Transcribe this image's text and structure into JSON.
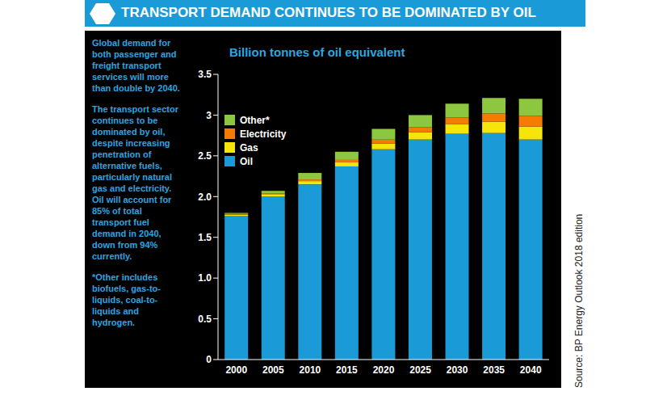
{
  "chart_data": {
    "type": "bar",
    "title": "TRANSPORT DEMAND CONTINUES TO BE DOMINATED BY OIL",
    "ylabel": "Billion tonnes of oil equivalent",
    "annotations": [
      "Global demand for both passenger and freight transport services will more than double by 2040.",
      "The transport sector continues to be dominated by oil, despite increasing penetration of alternative fuels, particularly natural gas and electricity. Oil will account for 85% of total transport fuel demand in 2040, down from 94% currently.",
      "*Other includes biofuels, gas-to-liquids, coal-to-liquids and hydrogen."
    ],
    "source": "Source: BP Energy Outlook 2018 edition",
    "categories": [
      "2000",
      "2005",
      "2010",
      "2015",
      "2020",
      "2025",
      "2030",
      "2035",
      "2040"
    ],
    "series": [
      {
        "name": "Oil",
        "color": "#1a9ad6",
        "values": [
          1.76,
          2.0,
          2.15,
          2.37,
          2.58,
          2.7,
          2.77,
          2.78,
          2.7
        ]
      },
      {
        "name": "Gas",
        "color": "#f5e50a",
        "values": [
          0.02,
          0.03,
          0.04,
          0.05,
          0.07,
          0.09,
          0.12,
          0.14,
          0.16
        ]
      },
      {
        "name": "Electricity",
        "color": "#f57c00",
        "values": [
          0.01,
          0.01,
          0.02,
          0.03,
          0.05,
          0.06,
          0.08,
          0.1,
          0.13
        ]
      },
      {
        "name": "Other*",
        "color": "#8dc63f",
        "values": [
          0.01,
          0.03,
          0.08,
          0.1,
          0.13,
          0.15,
          0.17,
          0.19,
          0.21
        ]
      }
    ],
    "stacked": true,
    "legend": "upper left",
    "ylim": [
      0,
      3.5
    ],
    "yticks": [
      0,
      0.5,
      {
        "value": 1,
        "label": "1.0"
      },
      1.5,
      {
        "value": 2,
        "label": "2.0"
      },
      2.5,
      3,
      3.5
    ],
    "grid": false
  }
}
